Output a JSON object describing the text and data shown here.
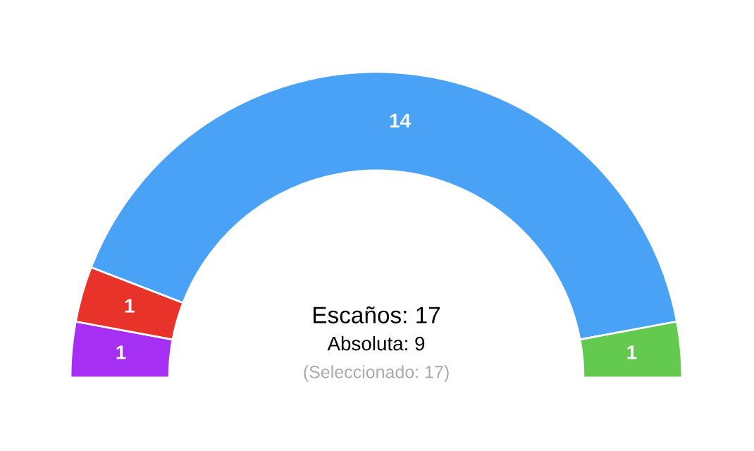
{
  "chart_data": {
    "type": "donut",
    "categories": [
      null,
      null,
      null,
      null
    ],
    "values": [
      1,
      1,
      14,
      1
    ],
    "colors": [
      "#a52ff2",
      "#e8332a",
      "#4aa2f7",
      "#64c94f"
    ],
    "data_labels": true,
    "annotations": [
      "Escaños: 17",
      "Absoluta: 9",
      "(Seleccionado: 17)"
    ]
  }
}
